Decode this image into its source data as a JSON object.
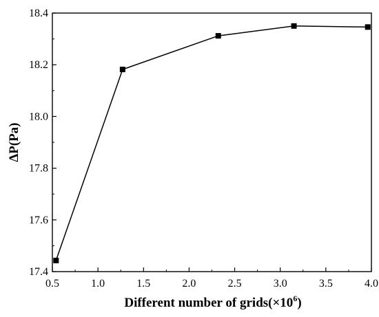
{
  "chart_data": {
    "type": "line",
    "title": "",
    "xlabel": "Different number of grids(×10",
    "xlabel_sup": "6",
    "xlabel_close": ")",
    "ylabel": "ΔP(Pa)",
    "xlim": [
      0.5,
      4.0
    ],
    "ylim": [
      17.4,
      18.4
    ],
    "xticks": [
      0.5,
      1.0,
      1.5,
      2.0,
      2.5,
      3.0,
      3.5,
      4.0
    ],
    "xtick_labels": [
      "0.5",
      "1.0",
      "1.5",
      "2.0",
      "2.5",
      "3.0",
      "3.5",
      "4.0"
    ],
    "yticks": [
      17.4,
      17.6,
      17.8,
      18.0,
      18.2,
      18.4
    ],
    "ytick_labels": [
      "17.4",
      "17.6",
      "17.8",
      "18.0",
      "18.2",
      "18.4"
    ],
    "grid": false,
    "legend": "none",
    "series": [
      {
        "x": [
          0.54,
          1.27,
          2.32,
          3.15,
          3.96
        ],
        "y": [
          17.443,
          18.182,
          18.312,
          18.35,
          18.346
        ],
        "color": "#000000",
        "marker": "square"
      }
    ]
  }
}
